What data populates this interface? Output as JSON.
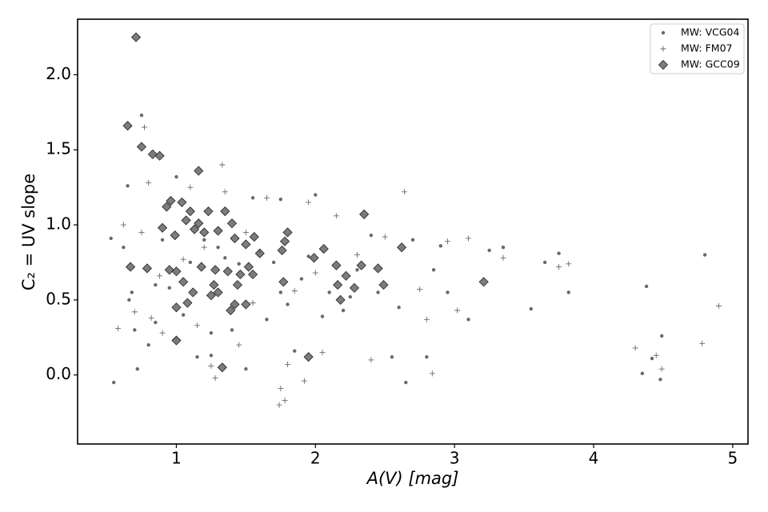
{
  "chart_data": {
    "type": "scatter",
    "xlabel": "A(V) [mag]",
    "ylabel": "C₂ = UV slope",
    "xlim": [
      0.29,
      5.11
    ],
    "ylim": [
      -0.46,
      2.37
    ],
    "xticks": [
      1,
      2,
      3,
      4,
      5
    ],
    "yticks": [
      {
        "value": 0,
        "label": "0.0"
      },
      {
        "value": 0.5,
        "label": "0.5"
      },
      {
        "value": 1,
        "label": "1.0"
      },
      {
        "value": 1.5,
        "label": "1.5"
      },
      {
        "value": 2,
        "label": "2.0"
      }
    ],
    "legend": "upper right",
    "series": [
      {
        "name": "MW: VCG04",
        "marker": "dot",
        "color": "#444444",
        "x": [
          0.53,
          0.55,
          0.65,
          0.62,
          0.66,
          0.68,
          0.72,
          0.75,
          0.8,
          0.85,
          0.9,
          1.0,
          1.1,
          1.15,
          1.25,
          1.3,
          1.45,
          1.5,
          1.6,
          1.7,
          1.75,
          1.85,
          2.0,
          2.1,
          2.2,
          2.3,
          2.4,
          2.55,
          2.65,
          2.7,
          2.8,
          2.85,
          2.95,
          3.1,
          3.25,
          3.35,
          3.55,
          3.65,
          3.75,
          3.82,
          4.35,
          4.38,
          4.42,
          4.48,
          4.49,
          4.8,
          1.2,
          1.35,
          1.55,
          1.9,
          2.05,
          2.6,
          0.7,
          0.85,
          1.05,
          1.4,
          1.65,
          1.8,
          2.25,
          2.9,
          1.95,
          1.25,
          0.95,
          1.75,
          2.45
        ],
        "y": [
          0.91,
          -0.05,
          1.26,
          0.85,
          0.5,
          0.55,
          0.04,
          1.73,
          0.2,
          0.6,
          0.9,
          1.32,
          0.75,
          0.12,
          0.13,
          0.85,
          0.74,
          0.04,
          0.82,
          0.75,
          1.17,
          0.16,
          1.2,
          0.55,
          0.43,
          0.7,
          0.93,
          0.12,
          -0.05,
          0.9,
          0.12,
          0.7,
          0.55,
          0.37,
          0.83,
          0.85,
          0.44,
          0.75,
          0.81,
          0.55,
          0.01,
          0.59,
          0.11,
          -0.03,
          0.26,
          0.8,
          0.9,
          0.78,
          1.18,
          0.64,
          0.39,
          0.45,
          0.3,
          0.35,
          0.4,
          0.3,
          0.37,
          0.47,
          0.52,
          0.86,
          0.79,
          0.28,
          0.58,
          0.55,
          0.55
        ]
      },
      {
        "name": "MW: FM07",
        "marker": "plus",
        "color": "#444444",
        "x": [
          0.58,
          0.62,
          0.7,
          0.75,
          0.77,
          0.8,
          0.82,
          0.9,
          1.0,
          1.1,
          1.2,
          1.25,
          1.28,
          1.33,
          1.35,
          1.45,
          1.55,
          1.65,
          1.75,
          1.78,
          1.74,
          1.8,
          1.85,
          1.92,
          1.95,
          2.05,
          2.15,
          2.4,
          2.5,
          2.64,
          2.75,
          2.8,
          2.84,
          2.95,
          3.02,
          3.1,
          3.35,
          3.75,
          3.82,
          4.3,
          4.45,
          4.49,
          4.78,
          4.9,
          1.05,
          1.5,
          2.0,
          2.3,
          1.15,
          0.88
        ],
        "y": [
          0.31,
          1.0,
          0.42,
          0.95,
          1.65,
          1.28,
          0.38,
          0.28,
          0.24,
          1.25,
          0.85,
          0.06,
          -0.02,
          1.4,
          1.22,
          0.2,
          0.48,
          1.18,
          -0.09,
          -0.17,
          -0.2,
          0.07,
          0.56,
          -0.04,
          1.15,
          0.15,
          1.06,
          0.1,
          0.92,
          1.22,
          0.57,
          0.37,
          0.01,
          0.89,
          0.43,
          0.91,
          0.78,
          0.72,
          0.74,
          0.18,
          0.13,
          0.04,
          0.21,
          0.46,
          0.77,
          0.95,
          0.68,
          0.8,
          0.33,
          0.66
        ]
      },
      {
        "name": "MW: GCC09",
        "marker": "diamond",
        "color": "#6e6e6e",
        "x": [
          0.71,
          0.65,
          0.75,
          0.83,
          0.88,
          1.16,
          0.67,
          0.79,
          0.9,
          0.93,
          0.96,
          0.99,
          1.04,
          1.07,
          1.1,
          1.13,
          1.16,
          1.2,
          1.23,
          1.3,
          1.35,
          1.4,
          1.42,
          1.5,
          1.56,
          1.76,
          1.78,
          1.8,
          1.99,
          2.06,
          1.0,
          1.05,
          1.08,
          1.12,
          1.0,
          1.0,
          1.25,
          1.27,
          1.28,
          1.33,
          1.37,
          1.39,
          1.42,
          1.44,
          1.46,
          1.5,
          1.55,
          1.6,
          1.77,
          1.95,
          2.15,
          2.16,
          2.18,
          2.22,
          2.28,
          2.33,
          2.35,
          2.45,
          2.49,
          2.62,
          3.21,
          1.52,
          1.3,
          0.95,
          1.18
        ],
        "y": [
          2.25,
          1.66,
          1.52,
          1.47,
          1.46,
          1.36,
          0.72,
          0.71,
          0.98,
          1.12,
          1.16,
          0.93,
          1.15,
          1.03,
          1.09,
          0.97,
          1.01,
          0.95,
          1.09,
          0.96,
          1.09,
          1.01,
          0.91,
          0.87,
          0.92,
          0.83,
          0.89,
          0.95,
          0.78,
          0.84,
          0.69,
          0.62,
          0.48,
          0.55,
          0.45,
          0.23,
          0.53,
          0.6,
          0.7,
          0.05,
          0.69,
          0.43,
          0.47,
          0.6,
          0.67,
          0.47,
          0.67,
          0.81,
          0.62,
          0.12,
          0.73,
          0.6,
          0.5,
          0.66,
          0.58,
          0.73,
          1.07,
          0.71,
          0.6,
          0.85,
          0.62,
          0.72,
          0.55,
          0.7,
          0.72
        ]
      }
    ]
  }
}
